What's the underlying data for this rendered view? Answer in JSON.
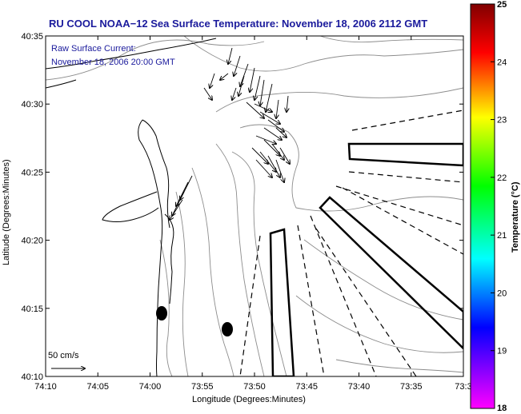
{
  "title": "RU COOL  NOAA−12  Sea Surface Temperature:  November 18, 2006 2112 GMT",
  "current_label_line1": "Raw Surface Current:",
  "current_label_line2": "November 18, 2006 20:00 GMT",
  "scale_label": "50 cm/s",
  "x_axis_label": "Longitude (Degrees:Minutes)",
  "y_axis_label": "Latitude (Degrees:Minutes)",
  "x_ticks": [
    "74:10",
    "74:05",
    "74:00",
    "73:55",
    "73:50",
    "73:45",
    "73:40",
    "73:35",
    "73:3"
  ],
  "y_ticks": [
    "40:35",
    "40:30",
    "40:25",
    "40:20",
    "40:15",
    "40:10"
  ],
  "colorbar": {
    "label": "Temperature (°C)",
    "ticks": [
      "25",
      "24",
      "23",
      "22",
      "21",
      "20",
      "19",
      "18"
    ],
    "min": 18,
    "max": 25,
    "stops": [
      "#ff00ff",
      "#0000ff",
      "#00ffff",
      "#00ff00",
      "#ffff00",
      "#ff0000",
      "#800000"
    ]
  }
}
